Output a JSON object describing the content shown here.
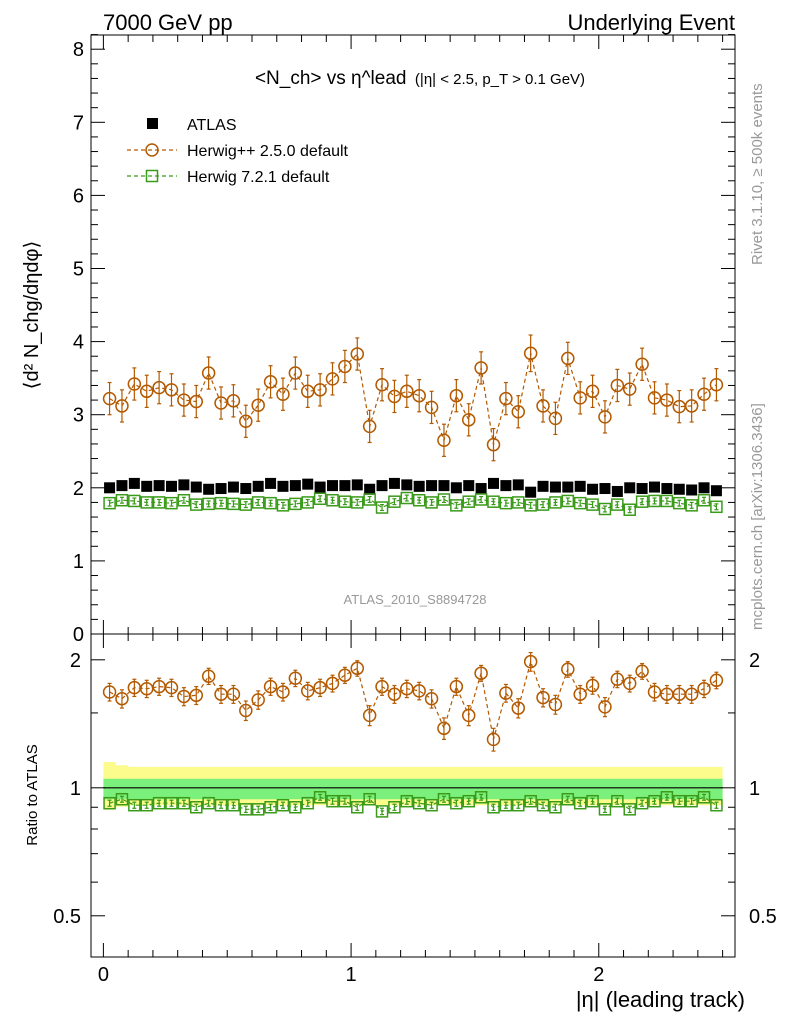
{
  "header": {
    "left": "7000 GeV pp",
    "right": "Underlying Event"
  },
  "side": {
    "rivet": "Rivet 3.1.10, ≥ 500k events",
    "mcplots": "mcplots.cern.ch [arXiv:1306.3436]"
  },
  "watermark": "ATLAS_2010_S8894728",
  "main_panel": {
    "ylabel": "⟨d² N_chg/dηdφ⟩",
    "title_main": "<N_ch> vs η^lead",
    "title_cut": "(|η| < 2.5, p_T > 0.1 GeV)"
  },
  "ratio_panel": {
    "ylabel": "Ratio to ATLAS"
  },
  "xlabel": "|η| (leading track)",
  "legend": [
    {
      "label": "ATLAS",
      "color": "#000000",
      "marker": "square-filled"
    },
    {
      "label": "Herwig++ 2.5.0 default",
      "color": "#b35900",
      "marker": "circle-open"
    },
    {
      "label": "Herwig 7.2.1 default",
      "color": "#3a9a1a",
      "marker": "square-open"
    }
  ],
  "chart_data": {
    "type": "scatter",
    "title": "<N_ch> vs η^lead (|η| < 2.5, p_T > 0.1 GeV)",
    "xlabel": "|η| (leading track)",
    "ylabel": "⟨d² N_chg/dηdφ⟩",
    "xlim": [
      -0.05,
      2.55
    ],
    "ylim": [
      0,
      8.2
    ],
    "x_ticks": [
      "0",
      "1",
      "2"
    ],
    "y_ticks": [
      "0",
      "1",
      "2",
      "3",
      "4",
      "5",
      "6",
      "7",
      "8"
    ],
    "ratio_ylim": [
      0.4,
      2.3
    ],
    "ratio_ticks": [
      "0.5",
      "1",
      "2"
    ],
    "ratio_ylabel": "Ratio to ATLAS",
    "x": [
      0.025,
      0.075,
      0.125,
      0.175,
      0.225,
      0.275,
      0.325,
      0.375,
      0.425,
      0.475,
      0.525,
      0.575,
      0.625,
      0.675,
      0.725,
      0.775,
      0.825,
      0.875,
      0.925,
      0.975,
      1.025,
      1.075,
      1.125,
      1.175,
      1.225,
      1.275,
      1.325,
      1.375,
      1.425,
      1.475,
      1.525,
      1.575,
      1.625,
      1.675,
      1.725,
      1.775,
      1.825,
      1.875,
      1.925,
      1.975,
      2.025,
      2.075,
      2.125,
      2.175,
      2.225,
      2.275,
      2.325,
      2.375,
      2.425,
      2.475
    ],
    "series": [
      {
        "name": "ATLAS",
        "values": [
          2.0,
          2.03,
          2.06,
          2.02,
          2.03,
          2.02,
          2.04,
          2.01,
          1.98,
          1.99,
          2.01,
          1.99,
          2.02,
          2.06,
          2.02,
          2.03,
          2.05,
          2.01,
          2.03,
          2.03,
          2.04,
          1.98,
          2.03,
          2.06,
          2.04,
          2.02,
          2.03,
          2.03,
          2.0,
          2.03,
          1.99,
          2.06,
          2.03,
          2.04,
          1.94,
          2.02,
          2.01,
          2.01,
          2.02,
          1.98,
          1.99,
          1.95,
          2.0,
          1.99,
          2.01,
          1.99,
          1.98,
          1.97,
          2.0,
          1.96
        ],
        "ratio": [
          1.0,
          1.0,
          1.0,
          1.0,
          1.0,
          1.0,
          1.0,
          1.0,
          1.0,
          1.0,
          1.0,
          1.0,
          1.0,
          1.0,
          1.0,
          1.0,
          1.0,
          1.0,
          1.0,
          1.0,
          1.0,
          1.0,
          1.0,
          1.0,
          1.0,
          1.0,
          1.0,
          1.0,
          1.0,
          1.0,
          1.0,
          1.0,
          1.0,
          1.0,
          1.0,
          1.0,
          1.0,
          1.0,
          1.0,
          1.0,
          1.0,
          1.0,
          1.0,
          1.0,
          1.0,
          1.0,
          1.0,
          1.0,
          1.0,
          1.0
        ]
      },
      {
        "name": "Herwig++ 2.5.0 default",
        "values": [
          3.22,
          3.12,
          3.42,
          3.32,
          3.37,
          3.34,
          3.2,
          3.18,
          3.57,
          3.16,
          3.19,
          2.91,
          3.13,
          3.45,
          3.28,
          3.57,
          3.32,
          3.34,
          3.49,
          3.66,
          3.83,
          2.84,
          3.41,
          3.25,
          3.32,
          3.26,
          3.1,
          2.65,
          3.26,
          2.93,
          3.64,
          2.59,
          3.22,
          3.04,
          3.84,
          3.12,
          2.95,
          3.77,
          3.23,
          3.32,
          2.97,
          3.4,
          3.35,
          3.69,
          3.23,
          3.2,
          3.11,
          3.12,
          3.28,
          3.41
        ],
        "errors": [
          0.22,
          0.22,
          0.22,
          0.22,
          0.22,
          0.22,
          0.22,
          0.22,
          0.22,
          0.22,
          0.22,
          0.22,
          0.22,
          0.22,
          0.22,
          0.22,
          0.22,
          0.22,
          0.22,
          0.22,
          0.22,
          0.22,
          0.22,
          0.22,
          0.22,
          0.22,
          0.22,
          0.22,
          0.22,
          0.22,
          0.22,
          0.22,
          0.22,
          0.22,
          0.25,
          0.22,
          0.22,
          0.22,
          0.22,
          0.22,
          0.22,
          0.22,
          0.22,
          0.22,
          0.22,
          0.22,
          0.22,
          0.22,
          0.22,
          0.22
        ],
        "ratio": [
          1.68,
          1.62,
          1.72,
          1.71,
          1.73,
          1.72,
          1.64,
          1.65,
          1.83,
          1.66,
          1.66,
          1.52,
          1.61,
          1.73,
          1.68,
          1.81,
          1.69,
          1.72,
          1.76,
          1.84,
          1.91,
          1.48,
          1.73,
          1.66,
          1.71,
          1.69,
          1.62,
          1.38,
          1.73,
          1.48,
          1.86,
          1.3,
          1.67,
          1.54,
          1.98,
          1.63,
          1.57,
          1.9,
          1.66,
          1.74,
          1.55,
          1.8,
          1.76,
          1.88,
          1.68,
          1.66,
          1.66,
          1.66,
          1.71,
          1.79
        ],
        "ratio_errors": [
          0.08,
          0.08,
          0.08,
          0.08,
          0.08,
          0.08,
          0.08,
          0.08,
          0.08,
          0.08,
          0.08,
          0.08,
          0.08,
          0.08,
          0.08,
          0.08,
          0.08,
          0.08,
          0.08,
          0.08,
          0.08,
          0.08,
          0.08,
          0.08,
          0.08,
          0.08,
          0.08,
          0.08,
          0.08,
          0.08,
          0.08,
          0.08,
          0.08,
          0.08,
          0.1,
          0.08,
          0.08,
          0.08,
          0.08,
          0.08,
          0.08,
          0.08,
          0.08,
          0.08,
          0.08,
          0.08,
          0.08,
          0.08,
          0.08,
          0.08
        ]
      },
      {
        "name": "Herwig 7.2.1 default",
        "values": [
          1.79,
          1.83,
          1.82,
          1.8,
          1.8,
          1.79,
          1.83,
          1.77,
          1.78,
          1.79,
          1.78,
          1.77,
          1.8,
          1.79,
          1.76,
          1.78,
          1.8,
          1.85,
          1.83,
          1.81,
          1.8,
          1.84,
          1.73,
          1.81,
          1.86,
          1.83,
          1.8,
          1.84,
          1.76,
          1.81,
          1.84,
          1.81,
          1.79,
          1.8,
          1.76,
          1.77,
          1.8,
          1.82,
          1.79,
          1.77,
          1.71,
          1.77,
          1.7,
          1.81,
          1.82,
          1.82,
          1.79,
          1.76,
          1.83,
          1.74
        ],
        "errors": [
          0.04,
          0.04,
          0.04,
          0.04,
          0.04,
          0.04,
          0.04,
          0.04,
          0.04,
          0.04,
          0.04,
          0.04,
          0.04,
          0.04,
          0.04,
          0.04,
          0.04,
          0.04,
          0.04,
          0.04,
          0.04,
          0.04,
          0.04,
          0.04,
          0.04,
          0.04,
          0.04,
          0.04,
          0.04,
          0.04,
          0.04,
          0.04,
          0.04,
          0.04,
          0.04,
          0.04,
          0.04,
          0.04,
          0.04,
          0.04,
          0.04,
          0.04,
          0.04,
          0.04,
          0.04,
          0.04,
          0.04,
          0.04,
          0.04,
          0.04
        ],
        "ratio": [
          0.92,
          0.94,
          0.91,
          0.91,
          0.92,
          0.92,
          0.92,
          0.9,
          0.92,
          0.91,
          0.91,
          0.89,
          0.89,
          0.9,
          0.91,
          0.9,
          0.92,
          0.95,
          0.93,
          0.93,
          0.9,
          0.94,
          0.88,
          0.9,
          0.93,
          0.92,
          0.91,
          0.94,
          0.92,
          0.93,
          0.95,
          0.9,
          0.91,
          0.91,
          0.93,
          0.91,
          0.9,
          0.94,
          0.92,
          0.93,
          0.89,
          0.93,
          0.89,
          0.92,
          0.93,
          0.95,
          0.93,
          0.93,
          0.95,
          0.91
        ],
        "ratio_errors": [
          0.015,
          0.015,
          0.015,
          0.015,
          0.015,
          0.015,
          0.015,
          0.015,
          0.015,
          0.015,
          0.015,
          0.015,
          0.015,
          0.015,
          0.015,
          0.015,
          0.015,
          0.015,
          0.015,
          0.015,
          0.015,
          0.015,
          0.015,
          0.015,
          0.015,
          0.015,
          0.015,
          0.015,
          0.015,
          0.015,
          0.015,
          0.015,
          0.015,
          0.015,
          0.015,
          0.015,
          0.015,
          0.015,
          0.015,
          0.015,
          0.015,
          0.015,
          0.015,
          0.015,
          0.015,
          0.015,
          0.015,
          0.015,
          0.015,
          0.015
        ]
      }
    ],
    "uncertainty_bands": {
      "stat_rel": 0.05,
      "total_rel": [
        0.15,
        0.13,
        0.12,
        0.12,
        0.12,
        0.12,
        0.12,
        0.12,
        0.12,
        0.12,
        0.12,
        0.12,
        0.12,
        0.12,
        0.12,
        0.12,
        0.12,
        0.12,
        0.12,
        0.12,
        0.12,
        0.12,
        0.12,
        0.12,
        0.12,
        0.12,
        0.12,
        0.12,
        0.12,
        0.12,
        0.12,
        0.12,
        0.12,
        0.12,
        0.12,
        0.12,
        0.12,
        0.12,
        0.12,
        0.12,
        0.12,
        0.12,
        0.12,
        0.12,
        0.12,
        0.12,
        0.12,
        0.12,
        0.12,
        0.12
      ]
    }
  },
  "colors": {
    "atlas": "#000000",
    "herwig25": "#b35900",
    "herwig72": "#3a9a1a",
    "band_stat": "#7cf07c",
    "band_total": "#fcfc8c",
    "watermark": "#999999"
  }
}
